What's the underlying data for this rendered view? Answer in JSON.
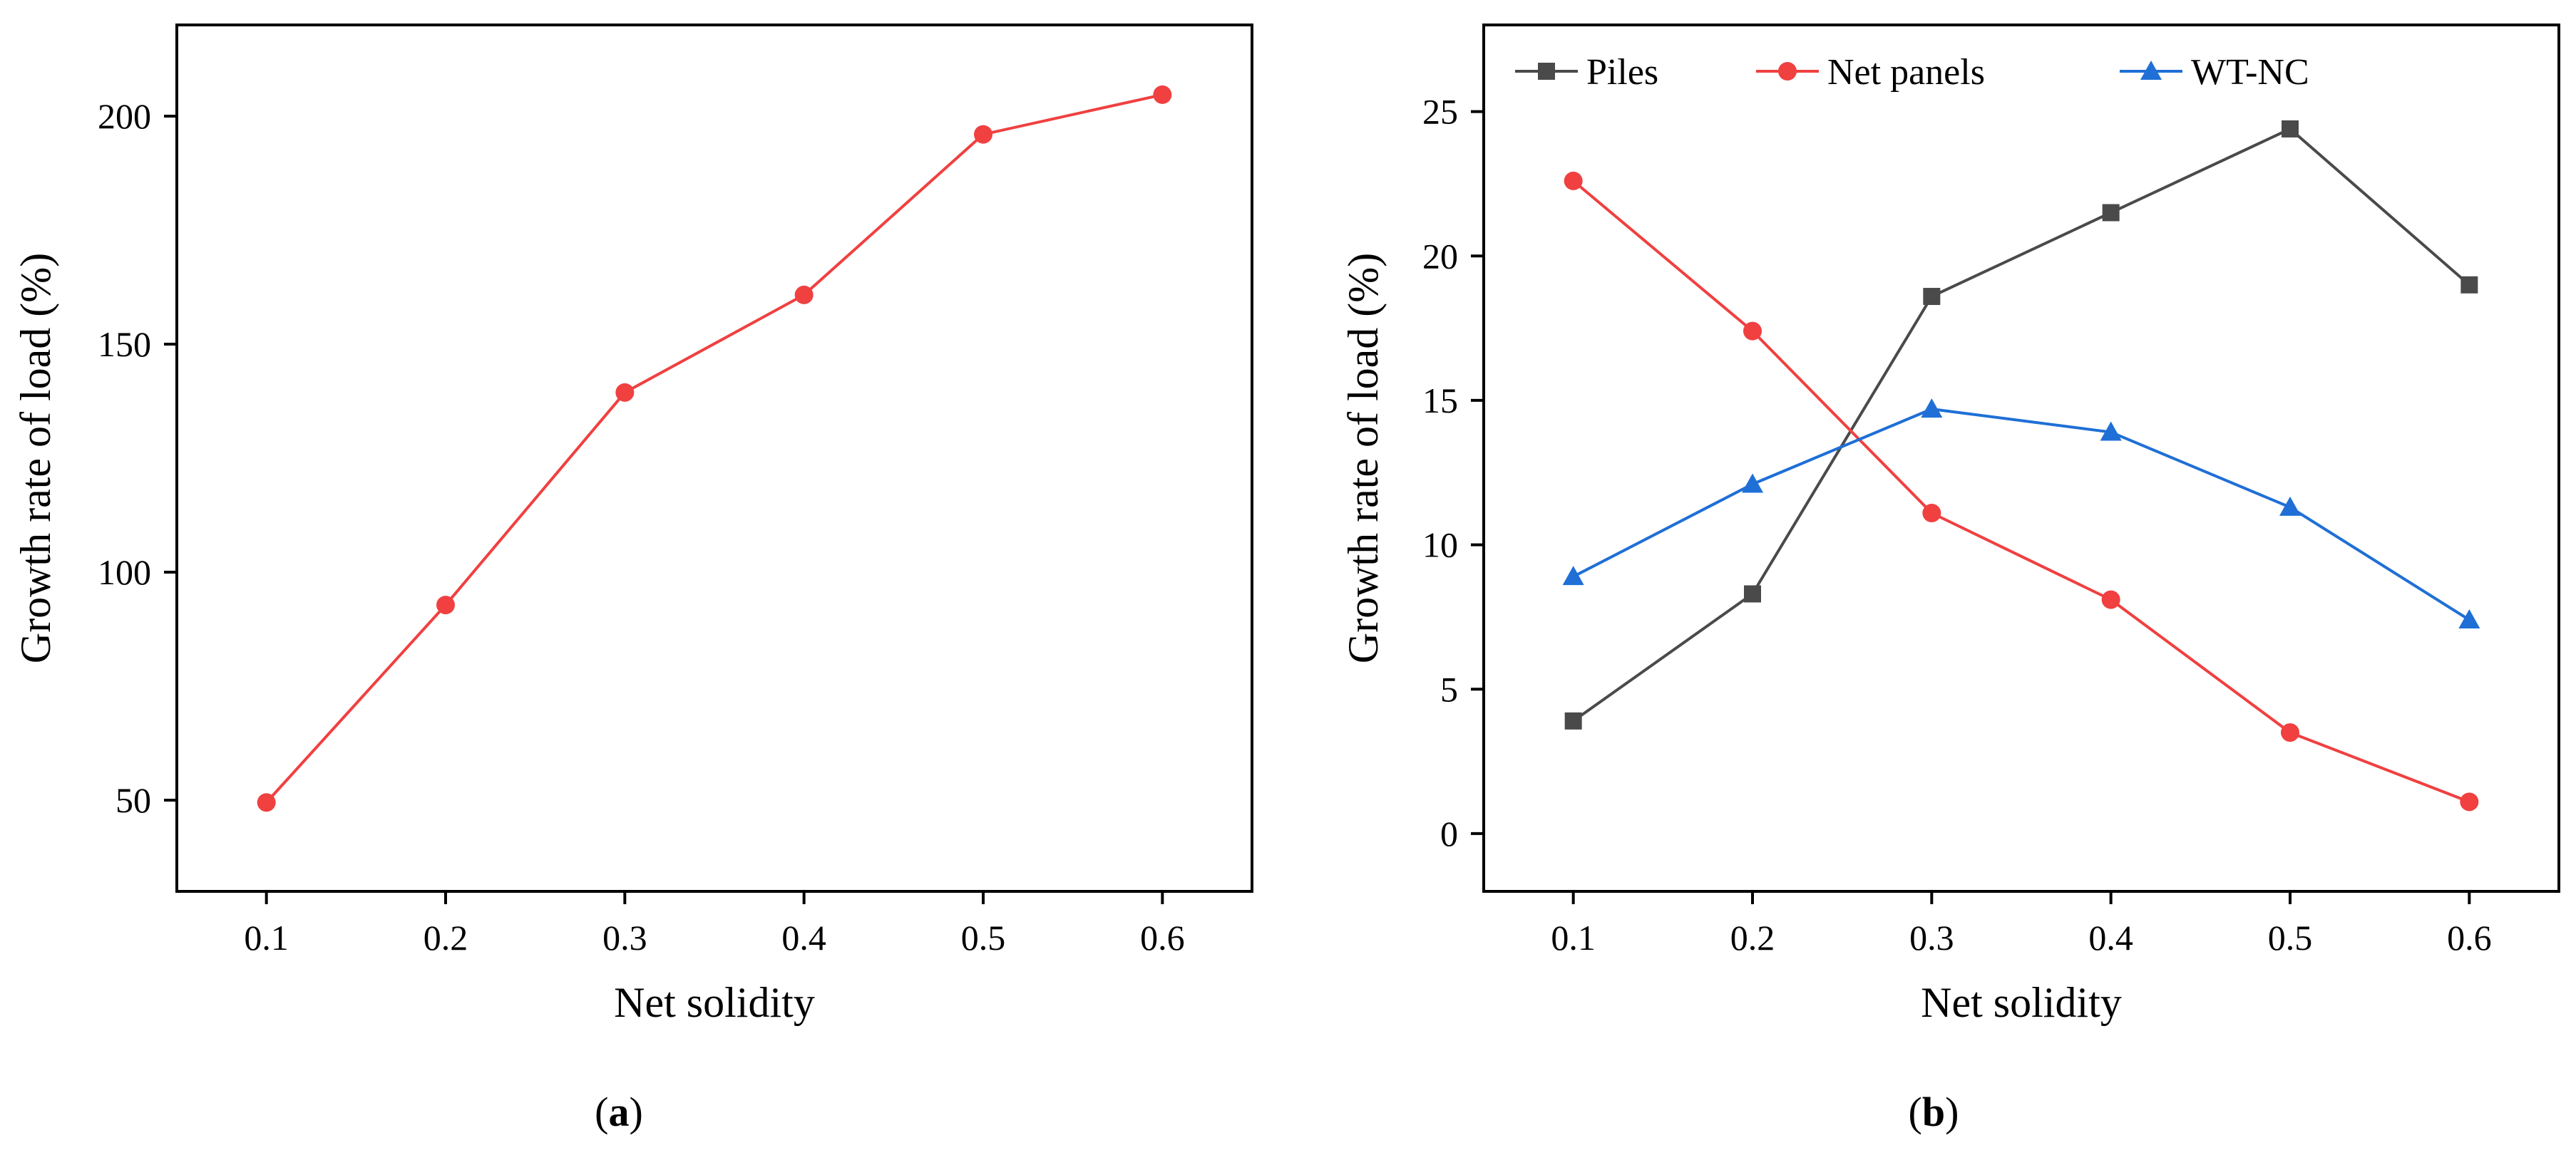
{
  "chart_data": [
    {
      "type": "line",
      "panel": "a",
      "caption": {
        "open": "(",
        "letter": "a",
        "close": ")"
      },
      "xlabel": "Net solidity",
      "ylabel": "Growth rate of load (%)",
      "x": [
        0.1,
        0.2,
        0.3,
        0.4,
        0.5,
        0.6
      ],
      "xlim": [
        0.05,
        0.65
      ],
      "ylim": [
        30,
        220
      ],
      "xticks": [
        0.1,
        0.2,
        0.3,
        0.4,
        0.5,
        0.6
      ],
      "xtick_labels": [
        "0.1",
        "0.2",
        "0.3",
        "0.4",
        "0.5",
        "0.6"
      ],
      "yticks": [
        50,
        100,
        150,
        200
      ],
      "ytick_labels": [
        "50",
        "100",
        "150",
        "200"
      ],
      "legend": null,
      "series": [
        {
          "name": "",
          "marker": "circle",
          "color": "#f04040",
          "values": [
            49.5,
            92.8,
            139.4,
            160.8,
            196.0,
            204.7
          ]
        }
      ]
    },
    {
      "type": "line",
      "panel": "b",
      "caption": {
        "open": "(",
        "letter": "b",
        "close": ")"
      },
      "xlabel": "Net solidity",
      "ylabel": "Growth rate of load (%)",
      "x": [
        0.1,
        0.2,
        0.3,
        0.4,
        0.5,
        0.6
      ],
      "xlim": [
        0.05,
        0.65
      ],
      "ylim": [
        -2,
        28
      ],
      "xticks": [
        0.1,
        0.2,
        0.3,
        0.4,
        0.5,
        0.6
      ],
      "xtick_labels": [
        "0.1",
        "0.2",
        "0.3",
        "0.4",
        "0.5",
        "0.6"
      ],
      "yticks": [
        0,
        5,
        10,
        15,
        20,
        25
      ],
      "ytick_labels": [
        "0",
        "5",
        "10",
        "15",
        "20",
        "25"
      ],
      "legend": "top",
      "series": [
        {
          "name": "Piles",
          "marker": "square",
          "color": "#4a4a4a",
          "values": [
            3.9,
            8.3,
            18.6,
            21.5,
            24.4,
            19.0
          ]
        },
        {
          "name": "Net panels",
          "marker": "circle",
          "color": "#f04040",
          "values": [
            22.6,
            17.4,
            11.1,
            8.1,
            3.5,
            1.1
          ]
        },
        {
          "name": "WT-NC",
          "marker": "triangle",
          "color": "#1f6fd6",
          "values": [
            8.9,
            12.1,
            14.7,
            13.9,
            11.3,
            7.4
          ]
        }
      ]
    }
  ]
}
